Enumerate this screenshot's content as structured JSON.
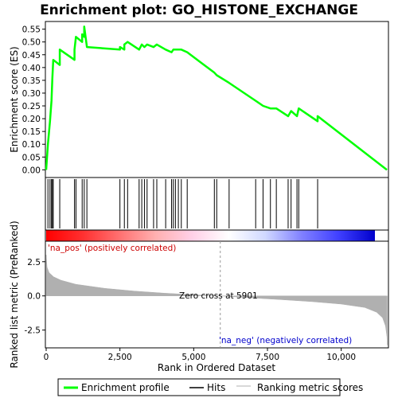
{
  "chart_data": {
    "type": "line",
    "title": "Enrichment plot: GO_HISTONE_EXCHANGE",
    "top_panel": {
      "ylabel": "Enrichment score (ES)",
      "ylim": [
        -0.03,
        0.58
      ],
      "yticks": [
        "0.00",
        "0.05",
        "0.10",
        "0.15",
        "0.20",
        "0.25",
        "0.30",
        "0.35",
        "0.40",
        "0.45",
        "0.50",
        "0.55"
      ],
      "series": [
        {
          "name": "Enrichment profile",
          "color": "#00ff00",
          "x": [
            0,
            60,
            60,
            130,
            130,
            180,
            180,
            210,
            210,
            240,
            240,
            460,
            460,
            960,
            960,
            1010,
            1010,
            1220,
            1220,
            1290,
            1290,
            1380,
            1380,
            2500,
            2500,
            2650,
            2650,
            2760,
            2760,
            3150,
            3150,
            3240,
            3240,
            3330,
            3330,
            3420,
            3420,
            3640,
            3640,
            3750,
            3750,
            4050,
            4050,
            4250,
            4250,
            4310,
            4310,
            4380,
            4380,
            4480,
            4480,
            4580,
            4580,
            4780,
            4780,
            5700,
            5700,
            5780,
            5780,
            6200,
            6200,
            7100,
            7100,
            7350,
            7350,
            7600,
            7600,
            7800,
            7800,
            8200,
            8200,
            8300,
            8300,
            8500,
            8500,
            8560,
            8560,
            9200,
            9200,
            11550
          ],
          "y": [
            0.0,
            0.1,
            0.1,
            0.19,
            0.19,
            0.27,
            0.27,
            0.36,
            0.36,
            0.43,
            0.43,
            0.41,
            0.47,
            0.43,
            0.47,
            0.52,
            0.52,
            0.5,
            0.53,
            0.52,
            0.56,
            0.48,
            0.48,
            0.47,
            0.48,
            0.47,
            0.49,
            0.5,
            0.5,
            0.47,
            0.47,
            0.49,
            0.49,
            0.48,
            0.48,
            0.49,
            0.49,
            0.48,
            0.48,
            0.49,
            0.49,
            0.47,
            0.47,
            0.46,
            0.46,
            0.47,
            0.47,
            0.47,
            0.47,
            0.47,
            0.47,
            0.47,
            0.47,
            0.46,
            0.46,
            0.38,
            0.38,
            0.37,
            0.37,
            0.34,
            0.34,
            0.27,
            0.27,
            0.25,
            0.25,
            0.24,
            0.24,
            0.24,
            0.24,
            0.21,
            0.21,
            0.23,
            0.23,
            0.21,
            0.21,
            0.24,
            0.24,
            0.19,
            0.21,
            0.0
          ]
        }
      ]
    },
    "hits": {
      "name": "Hits",
      "x": [
        60,
        130,
        180,
        210,
        240,
        460,
        960,
        1010,
        1220,
        1290,
        1380,
        2500,
        2650,
        2760,
        3150,
        3240,
        3330,
        3420,
        3640,
        3750,
        4050,
        4250,
        4310,
        4380,
        4480,
        4580,
        4780,
        5700,
        5780,
        6200,
        7100,
        7350,
        7600,
        7800,
        8200,
        8300,
        8500,
        8560,
        9200
      ]
    },
    "ranked_metric": {
      "name": "Ranking metric scores",
      "ylabel": "Ranked list metric (PreRanked)",
      "xlabel": "Rank in Ordered Dataset",
      "ylim": [
        -3.8,
        4.0
      ],
      "yticks": [
        "-2.5",
        "0.0",
        "2.5"
      ],
      "xlim": [
        0,
        11600
      ],
      "xticks": [
        "0",
        "2,500",
        "5,000",
        "7,500",
        "10,000"
      ],
      "profile_x": [
        0,
        30,
        100,
        250,
        500,
        1000,
        2000,
        3000,
        4000,
        5000,
        5901,
        7000,
        8000,
        9000,
        10000,
        10800,
        11200,
        11400,
        11500,
        11550,
        11560
      ],
      "profile_y": [
        3.0,
        2.1,
        1.7,
        1.4,
        1.15,
        0.85,
        0.55,
        0.35,
        0.2,
        0.08,
        0.0,
        -0.15,
        -0.28,
        -0.42,
        -0.6,
        -0.85,
        -1.2,
        -1.6,
        -2.2,
        -3.0,
        -3.6
      ],
      "color": "#b0b0b0"
    },
    "annotations": {
      "pos_label": "'na_pos' (positively correlated)",
      "neg_label": "'na_neg' (negatively correlated)",
      "zero_cross": "Zero cross at 5901",
      "zero_cross_x": 5901
    },
    "legend": {
      "placement": "bottom",
      "items": [
        {
          "label": "Enrichment profile",
          "color": "#00ff00"
        },
        {
          "label": "Hits",
          "color": "#000000"
        },
        {
          "label": "Ranking metric scores",
          "color": "#b0b0b0"
        }
      ]
    },
    "colorbar": {
      "stops": [
        "#ff0000",
        "#ff3030",
        "#ff7070",
        "#ffb0b0",
        "#ffd0e8",
        "#ffffff",
        "#d0d8ff",
        "#8080ff",
        "#4040ff",
        "#0000cc"
      ]
    }
  }
}
